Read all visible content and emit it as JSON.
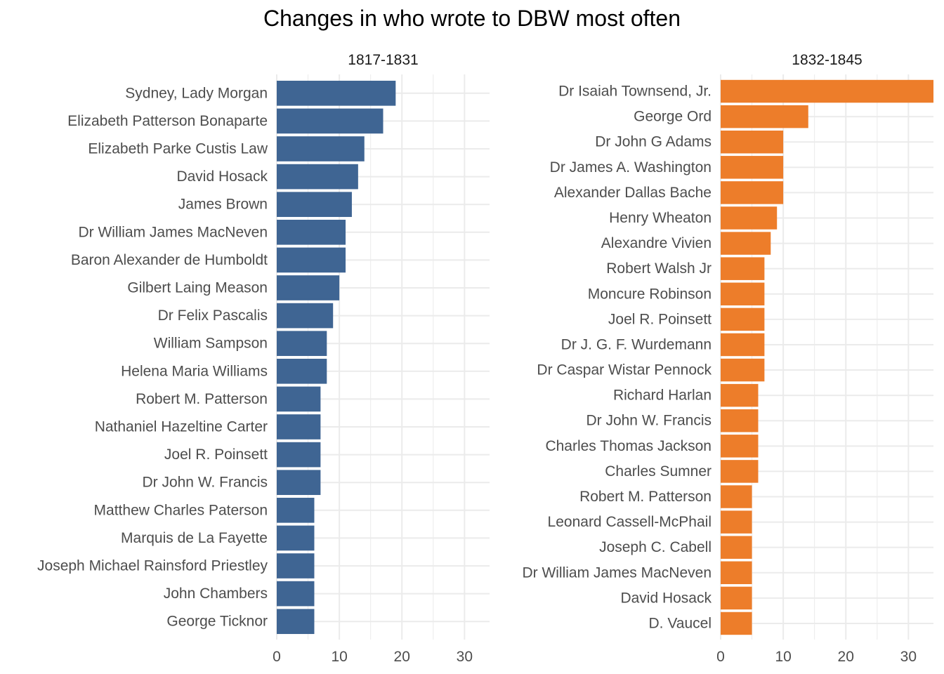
{
  "chart_data": {
    "type": "bar",
    "orientation": "horizontal",
    "title": "Changes in who wrote to DBW most often",
    "xlabel": "",
    "ylabel": "",
    "grid": true,
    "legend": "none",
    "panels": [
      {
        "facet_title": "1817-1831",
        "color": "#3f6593",
        "xlim": [
          0,
          34
        ],
        "x_ticks": [
          0,
          10,
          20,
          30
        ],
        "categories": [
          "Sydney, Lady Morgan",
          "Elizabeth Patterson Bonaparte",
          "Elizabeth Parke Custis Law",
          "David Hosack",
          "James Brown",
          "Dr William James MacNeven",
          "Baron Alexander de Humboldt",
          "Gilbert Laing Meason",
          "Dr Felix Pascalis",
          "William Sampson",
          "Helena Maria Williams",
          "Robert M. Patterson",
          "Nathaniel Hazeltine Carter",
          "Joel R. Poinsett",
          "Dr John W. Francis",
          "Matthew Charles Paterson",
          "Marquis de La Fayette",
          "Joseph Michael Rainsford Priestley",
          "John Chambers",
          "George Ticknor"
        ],
        "values": [
          19,
          17,
          14,
          13,
          12,
          11,
          11,
          10,
          9,
          8,
          8,
          7,
          7,
          7,
          7,
          6,
          6,
          6,
          6,
          6
        ]
      },
      {
        "facet_title": "1832-1845",
        "color": "#ed7d2a",
        "xlim": [
          0,
          34
        ],
        "x_ticks": [
          0,
          10,
          20,
          30
        ],
        "categories": [
          "Dr Isaiah Townsend, Jr.",
          "George Ord",
          "Dr John G Adams",
          "Dr James A. Washington",
          "Alexander Dallas Bache",
          "Henry Wheaton",
          "Alexandre Vivien",
          "Robert Walsh Jr",
          "Moncure Robinson",
          "Joel R. Poinsett",
          "Dr J. G. F. Wurdemann",
          "Dr Caspar Wistar Pennock",
          "Richard Harlan",
          "Dr John W. Francis",
          "Charles Thomas Jackson",
          "Charles Sumner",
          "Robert M. Patterson",
          "Leonard Cassell-McPhail",
          "Joseph C. Cabell",
          "Dr William James MacNeven",
          "David Hosack",
          "D. Vaucel"
        ],
        "values": [
          34,
          14,
          10,
          10,
          10,
          9,
          8,
          7,
          7,
          7,
          7,
          7,
          6,
          6,
          6,
          6,
          5,
          5,
          5,
          5,
          5,
          5
        ]
      }
    ]
  }
}
